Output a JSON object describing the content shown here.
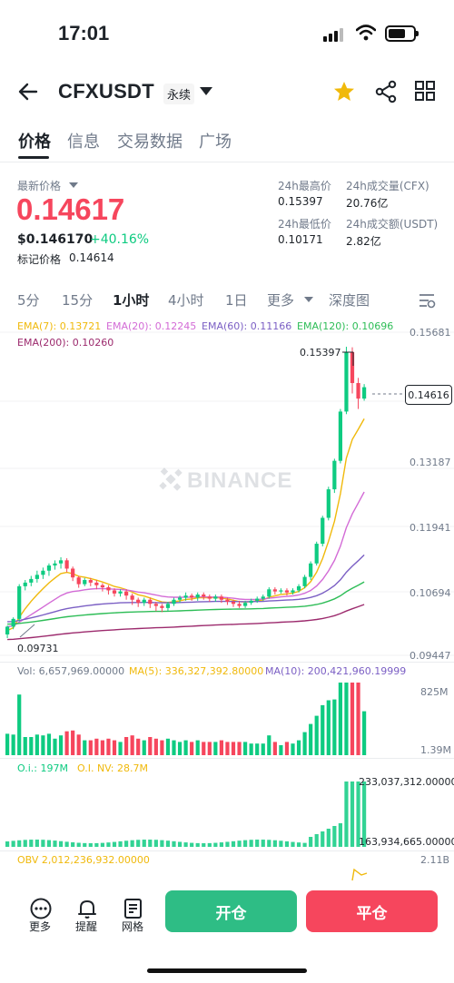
{
  "status_bar": {
    "time": "17:01"
  },
  "header": {
    "symbol": "CFXUSDT",
    "contract_type": "永续"
  },
  "tabs": [
    "价格",
    "信息",
    "交易数据",
    "广场"
  ],
  "ticker": {
    "last_price_label": "最新价格",
    "last_price": "0.14617",
    "usd_price": "$0.146170",
    "change_pct": "+40.16%",
    "mark_price_label": "标记价格",
    "mark_price": "0.14614",
    "high_label": "24h最高价",
    "high": "0.15397",
    "low_label": "24h最低价",
    "low": "0.10171",
    "vol_cfx_label": "24h成交量(CFX)",
    "vol_cfx": "20.76亿",
    "vol_usdt_label": "24h成交额(USDT)",
    "vol_usdt": "2.82亿"
  },
  "intervals": [
    "5分",
    "15分",
    "1小时",
    "4小时",
    "1日",
    "更多",
    "深度图"
  ],
  "indicators": {
    "ema7": "EMA(7): 0.13721",
    "ema20": "EMA(20): 0.12245",
    "ema60": "EMA(60): 0.11166",
    "ema120": "EMA(120): 0.10696",
    "ema200": "EMA(200): 0.10260",
    "vol": "Vol: 6,657,969.00000",
    "ma5": "MA(5): 336,327,392.80000",
    "ma10": "MA(10): 200,421,960.19999",
    "oi": "O.i.: 197M",
    "oi_nv": "O.I. NV: 28.7M",
    "obv": "OBV 2,012,236,932.00000"
  },
  "watermark": "BINANCE",
  "chart_data": {
    "type": "candlestick",
    "y_ticks": [
      "0.15681",
      "0.13187",
      "0.11941",
      "0.10694",
      "0.09447"
    ],
    "high_marker": "0.15397",
    "low_marker": "0.09731",
    "current_price_tag": "0.14616",
    "volume_ticks": [
      "825M",
      "1.39M"
    ],
    "oi_ticks": [
      "233,037,312.00000",
      "163,934,665.00000"
    ],
    "obv_ticks": [
      "2.11B"
    ],
    "colors": {
      "up": "#0ecb81",
      "down": "#f6465d"
    },
    "candles": [
      [
        0.0985,
        0.1,
        0.0978,
        0.1002
      ],
      [
        0.1,
        0.1015,
        0.0995,
        0.1018
      ],
      [
        0.1015,
        0.1078,
        0.101,
        0.1082
      ],
      [
        0.1078,
        0.1085,
        0.107,
        0.109
      ],
      [
        0.1085,
        0.1092,
        0.1078,
        0.1098
      ],
      [
        0.1092,
        0.11,
        0.1085,
        0.1108
      ],
      [
        0.11,
        0.1108,
        0.1092,
        0.1114
      ],
      [
        0.1108,
        0.1118,
        0.1098,
        0.1122
      ],
      [
        0.1118,
        0.1122,
        0.111,
        0.1128
      ],
      [
        0.1122,
        0.1128,
        0.1112,
        0.1134
      ],
      [
        0.1128,
        0.1112,
        0.1105,
        0.1132
      ],
      [
        0.1112,
        0.1095,
        0.1088,
        0.1116
      ],
      [
        0.1095,
        0.1082,
        0.1075,
        0.1098
      ],
      [
        0.1082,
        0.109,
        0.1078,
        0.1094
      ],
      [
        0.109,
        0.1085,
        0.1078,
        0.1094
      ],
      [
        0.1085,
        0.108,
        0.1072,
        0.109
      ],
      [
        0.108,
        0.1076,
        0.1068,
        0.1084
      ],
      [
        0.1076,
        0.107,
        0.1062,
        0.108
      ],
      [
        0.107,
        0.1064,
        0.1058,
        0.1074
      ],
      [
        0.1064,
        0.1068,
        0.1058,
        0.1072
      ],
      [
        0.1068,
        0.106,
        0.1052,
        0.1072
      ],
      [
        0.106,
        0.1052,
        0.1042,
        0.1064
      ],
      [
        0.1052,
        0.1046,
        0.1038,
        0.1056
      ],
      [
        0.1046,
        0.1052,
        0.104,
        0.1056
      ],
      [
        0.1052,
        0.1044,
        0.1036,
        0.1056
      ],
      [
        0.1044,
        0.104,
        0.103,
        0.1048
      ],
      [
        0.104,
        0.1036,
        0.1028,
        0.1044
      ],
      [
        0.1036,
        0.1044,
        0.103,
        0.1048
      ],
      [
        0.1044,
        0.1052,
        0.104,
        0.1056
      ],
      [
        0.1052,
        0.1056,
        0.1046,
        0.106
      ],
      [
        0.1056,
        0.106,
        0.105,
        0.1066
      ],
      [
        0.106,
        0.1056,
        0.105,
        0.1064
      ],
      [
        0.1056,
        0.1062,
        0.105,
        0.1066
      ],
      [
        0.1062,
        0.1058,
        0.1052,
        0.1066
      ],
      [
        0.1058,
        0.1054,
        0.1048,
        0.1062
      ],
      [
        0.1054,
        0.1058,
        0.1048,
        0.1062
      ],
      [
        0.1058,
        0.1052,
        0.1046,
        0.1062
      ],
      [
        0.1052,
        0.1048,
        0.1042,
        0.1056
      ],
      [
        0.1048,
        0.1044,
        0.1038,
        0.1052
      ],
      [
        0.1044,
        0.104,
        0.1036,
        0.105
      ],
      [
        0.104,
        0.1046,
        0.1036,
        0.105
      ],
      [
        0.1046,
        0.105,
        0.1042,
        0.1054
      ],
      [
        0.105,
        0.1054,
        0.1046,
        0.1058
      ],
      [
        0.1054,
        0.1058,
        0.105,
        0.1062
      ],
      [
        0.1058,
        0.1072,
        0.1054,
        0.1076
      ],
      [
        0.1072,
        0.1068,
        0.1062,
        0.1076
      ],
      [
        0.1068,
        0.107,
        0.1064,
        0.1074
      ],
      [
        0.107,
        0.1066,
        0.106,
        0.1074
      ],
      [
        0.1066,
        0.107,
        0.1062,
        0.1074
      ],
      [
        0.107,
        0.1078,
        0.1066,
        0.1082
      ],
      [
        0.1078,
        0.1096,
        0.1074,
        0.11
      ],
      [
        0.1096,
        0.1122,
        0.109,
        0.1126
      ],
      [
        0.1122,
        0.116,
        0.1118,
        0.1164
      ],
      [
        0.116,
        0.121,
        0.1155,
        0.1214
      ],
      [
        0.121,
        0.1265,
        0.1205,
        0.127
      ],
      [
        0.1265,
        0.132,
        0.1258,
        0.1324
      ],
      [
        0.132,
        0.1415,
        0.1315,
        0.142
      ],
      [
        0.1415,
        0.153,
        0.141,
        0.154
      ],
      [
        0.153,
        0.147,
        0.145,
        0.1539
      ],
      [
        0.147,
        0.144,
        0.142,
        0.148
      ],
      [
        0.144,
        0.1462,
        0.1436,
        0.1468
      ]
    ]
  },
  "bottom_bar": {
    "more": "更多",
    "alert": "提醒",
    "grid": "网格",
    "open_label": "开仓",
    "close_label": "平仓"
  }
}
